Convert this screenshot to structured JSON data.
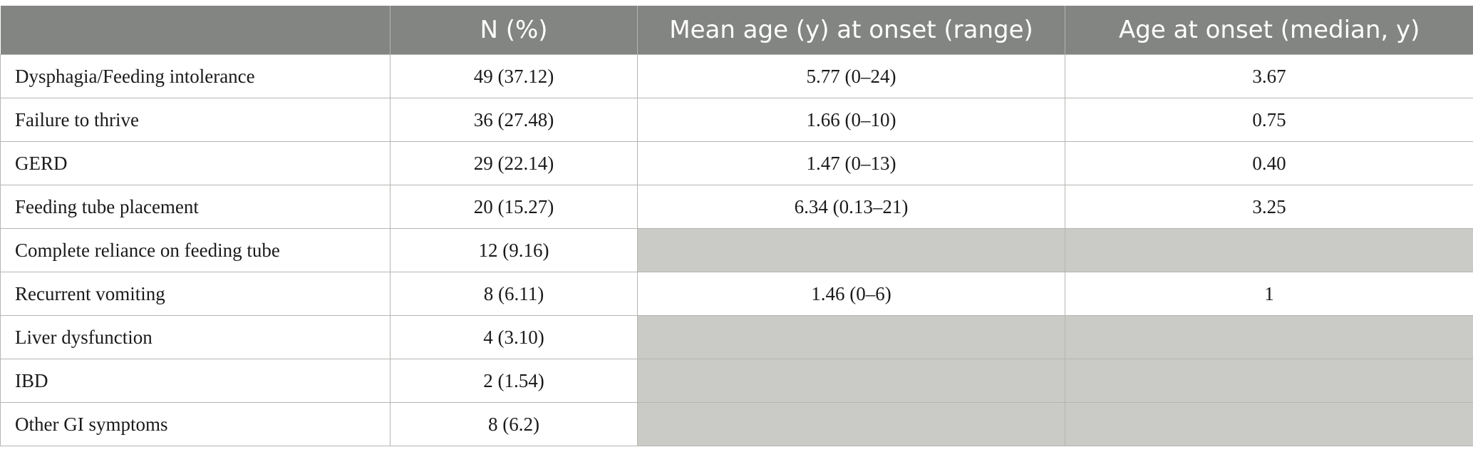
{
  "headers": [
    "",
    "N (%)",
    "Mean age (y) at onset (range)",
    "Age at onset (median, y)"
  ],
  "rows": [
    {
      "label": "Dysphagia/Feeding intolerance",
      "n": "49 (37.12)",
      "mean": "5.77 (0–24)",
      "median": "3.67"
    },
    {
      "label": "Failure to thrive",
      "n": "36 (27.48)",
      "mean": "1.66 (0–10)",
      "median": "0.75"
    },
    {
      "label": "GERD",
      "n": "29 (22.14)",
      "mean": "1.47 (0–13)",
      "median": "0.40"
    },
    {
      "label": "Feeding tube placement",
      "n": "20 (15.27)",
      "mean": "6.34 (0.13–21)",
      "median": "3.25"
    },
    {
      "label": "Complete reliance on feeding tube",
      "n": "12 (9.16)",
      "mean": null,
      "median": null
    },
    {
      "label": "Recurrent vomiting",
      "n": "8 (6.11)",
      "mean": "1.46 (0–6)",
      "median": "1"
    },
    {
      "label": "Liver dysfunction",
      "n": "4 (3.10)",
      "mean": null,
      "median": null
    },
    {
      "label": "IBD",
      "n": "2 (1.54)",
      "mean": null,
      "median": null
    },
    {
      "label": "Other GI symptoms",
      "n": "8 (6.2)",
      "mean": null,
      "median": null
    }
  ],
  "colors": {
    "header_bg": "#838582",
    "header_text": "#ffffff",
    "empty_cell": "#cacac7",
    "grid": "#b5b5b2"
  }
}
